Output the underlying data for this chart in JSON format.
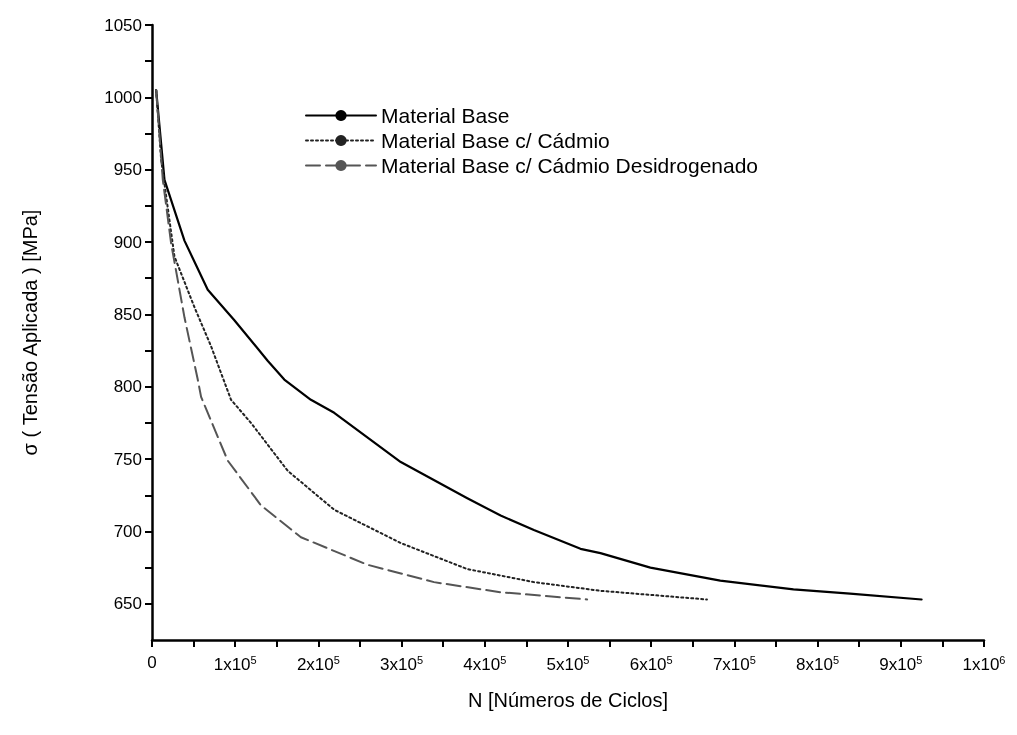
{
  "chart_data": {
    "type": "line",
    "xlabel": "N [Números de Ciclos]",
    "ylabel": "σ ( Tensão Aplicada ) [MPa]",
    "xlim": [
      0,
      1000000
    ],
    "ylim": [
      625,
      1050
    ],
    "xticks": [
      {
        "value": 0,
        "label": "0"
      },
      {
        "value": 50000,
        "label": null
      },
      {
        "value": 100000,
        "label": "1x10$^{5}$"
      },
      {
        "value": 150000,
        "label": null
      },
      {
        "value": 200000,
        "label": "2x10$^{5}$"
      },
      {
        "value": 250000,
        "label": null
      },
      {
        "value": 300000,
        "label": "3x10$^{5}$"
      },
      {
        "value": 350000,
        "label": null
      },
      {
        "value": 400000,
        "label": "4x10$^{5}$"
      },
      {
        "value": 450000,
        "label": null
      },
      {
        "value": 500000,
        "label": "5x10$^{5}$"
      },
      {
        "value": 550000,
        "label": null
      },
      {
        "value": 600000,
        "label": "6x10$^{5}$"
      },
      {
        "value": 650000,
        "label": null
      },
      {
        "value": 700000,
        "label": "7x10$^{5}$"
      },
      {
        "value": 750000,
        "label": null
      },
      {
        "value": 800000,
        "label": "8x10$^{5}$"
      },
      {
        "value": 850000,
        "label": null
      },
      {
        "value": 900000,
        "label": "9x10$^{5}$"
      },
      {
        "value": 950000,
        "label": null
      },
      {
        "value": 1000000,
        "label": "1x10$^{6}$"
      }
    ],
    "yticks": [
      650,
      {
        "value": 675,
        "label": null
      },
      700,
      {
        "value": 725,
        "label": null
      },
      750,
      {
        "value": 775,
        "label": null
      },
      800,
      {
        "value": 825,
        "label": null
      },
      850,
      {
        "value": 875,
        "label": null
      },
      900,
      {
        "value": 925,
        "label": null
      },
      950,
      {
        "value": 975,
        "label": null
      },
      1000,
      {
        "value": 1025,
        "label": null
      },
      1050
    ],
    "grid": false,
    "legend": "top right",
    "marker": "none",
    "series": [
      {
        "name": "Material Base",
        "color": "#000000",
        "line_style": "solid",
        "x": [
          5000,
          15000,
          39000,
          67000,
          99000,
          139000,
          159000,
          191000,
          219000,
          299000,
          379000,
          419000,
          459000,
          515000,
          539000,
          599000,
          683000,
          771000,
          839000,
          925000
        ],
        "values": [
          1005,
          943,
          901,
          867,
          846,
          818,
          805,
          791,
          782,
          748,
          723,
          711,
          701,
          688,
          685,
          675,
          666,
          660,
          657,
          653
        ]
      },
      {
        "name": "Material Base c/ Cádmio",
        "color": "#222222",
        "line_style": "dotted",
        "x": [
          5000,
          11000,
          27000,
          51000,
          71000,
          95000,
          119000,
          163000,
          219000,
          299000,
          379000,
          459000,
          539000,
          667000
        ],
        "values": [
          1005,
          957,
          890,
          855,
          828,
          791,
          775,
          742,
          715,
          692,
          674,
          665,
          659,
          653
        ]
      },
      {
        "name": "Material Base c/ Cádmio Desidrogenado",
        "color": "#555555",
        "line_style": "dashed",
        "x": [
          5000,
          13000,
          23000,
          39000,
          55000,
          59000,
          91000,
          131000,
          179000,
          259000,
          339000,
          419000,
          523000
        ],
        "values": [
          1005,
          943,
          899,
          848,
          805,
          793,
          749,
          718,
          696,
          677,
          665,
          658,
          653
        ]
      }
    ]
  }
}
